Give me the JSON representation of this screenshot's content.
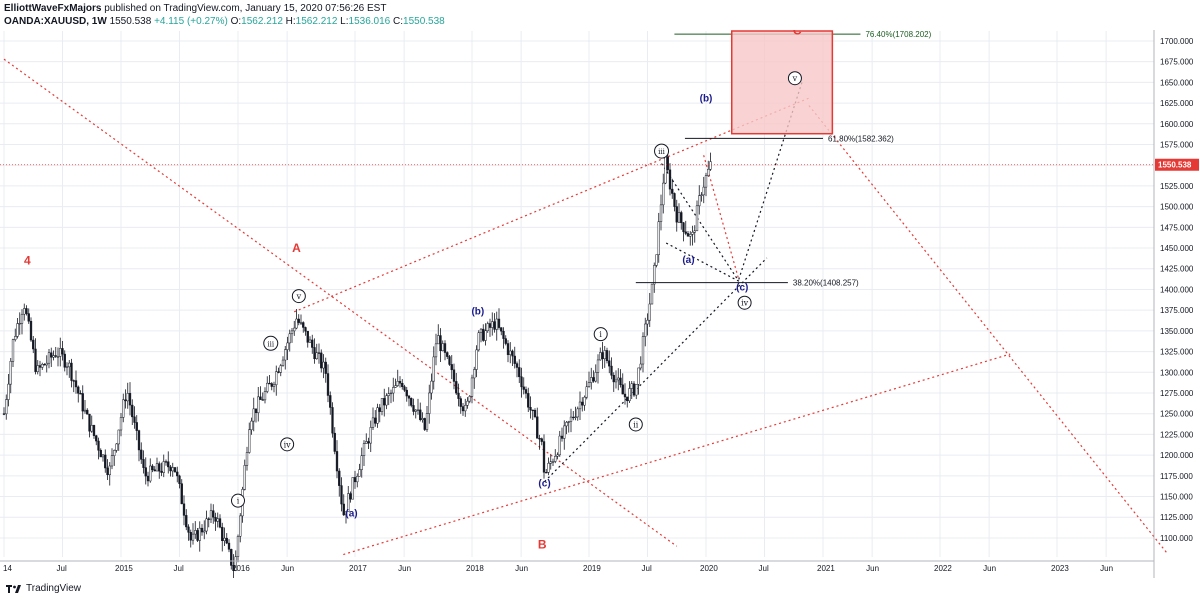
{
  "header": {
    "publisher": "ElliottWaveFxMajors",
    "published_text": "published on TradingView.com, January 15, 2020 07:56:26 EST",
    "symbol": "OANDA:XAUUSD, 1W",
    "last": "1550.538",
    "change": "+4.115 (+0.27%)",
    "o_label": "O:",
    "o_value": "1562.212",
    "h_label": "H:",
    "h_value": "1562.212",
    "l_label": "L:",
    "l_value": "1536.016",
    "c_label": "C:",
    "c_value": "1550.538"
  },
  "footer": {
    "brand": "TradingView",
    "logo_icon": "tradingview-logo-icon"
  },
  "colors": {
    "up": "#26a69a",
    "down": "#131722",
    "red": "#e53935",
    "navy": "#1a1a8c",
    "grid": "#e9ecf1",
    "zone_fill": "#f8c8c8",
    "zone_border": "#e53935",
    "green_line": "#1b5e20"
  },
  "chart_data": {
    "type": "candlestick",
    "instrument": "OANDA:XAUUSD",
    "timeframe": "1W",
    "y_axis": {
      "ticks": [
        "1700.000",
        "1675.000",
        "1650.000",
        "1625.000",
        "1600.000",
        "1575.000",
        "1550.000",
        "1525.000",
        "1500.000",
        "1475.000",
        "1450.000",
        "1425.000",
        "1400.000",
        "1375.000",
        "1350.000",
        "1325.000",
        "1300.000",
        "1275.000",
        "1250.000",
        "1225.000",
        "1200.000",
        "1175.000",
        "1150.000",
        "1125.000",
        "1100.000"
      ],
      "range": [
        1077,
        1712
      ],
      "price_label": "1550.538"
    },
    "x_axis": {
      "ticks": [
        "14",
        "Jul",
        "2015",
        "Jul",
        "2016",
        "Jun",
        "2017",
        "Jun",
        "2018",
        "Jun",
        "2019",
        "Jul",
        "2020",
        "Jul",
        "2021",
        "Jun",
        "2022",
        "Jun",
        "2023",
        "Jun"
      ]
    },
    "price_path": [
      [
        2014.0,
        1250
      ],
      [
        2014.08,
        1340
      ],
      [
        2014.17,
        1385
      ],
      [
        2014.28,
        1300
      ],
      [
        2014.45,
        1325
      ],
      [
        2014.55,
        1310
      ],
      [
        2014.72,
        1240
      ],
      [
        2014.9,
        1180
      ],
      [
        2015.05,
        1280
      ],
      [
        2015.2,
        1175
      ],
      [
        2015.45,
        1190
      ],
      [
        2015.6,
        1095
      ],
      [
        2015.8,
        1130
      ],
      [
        2015.97,
        1060
      ],
      [
        2016.1,
        1245
      ],
      [
        2016.3,
        1290
      ],
      [
        2016.5,
        1365
      ],
      [
        2016.75,
        1300
      ],
      [
        2016.9,
        1128
      ],
      [
        2017.05,
        1195
      ],
      [
        2017.2,
        1255
      ],
      [
        2017.4,
        1290
      ],
      [
        2017.6,
        1230
      ],
      [
        2017.7,
        1345
      ],
      [
        2017.95,
        1250
      ],
      [
        2018.05,
        1340
      ],
      [
        2018.2,
        1360
      ],
      [
        2018.4,
        1300
      ],
      [
        2018.6,
        1210
      ],
      [
        2018.62,
        1175
      ],
      [
        2018.8,
        1230
      ],
      [
        2019.0,
        1285
      ],
      [
        2019.12,
        1325
      ],
      [
        2019.3,
        1270
      ],
      [
        2019.4,
        1282
      ],
      [
        2019.55,
        1410
      ],
      [
        2019.65,
        1555
      ],
      [
        2019.75,
        1490
      ],
      [
        2019.88,
        1460
      ],
      [
        2019.96,
        1520
      ],
      [
        2020.04,
        1550
      ]
    ],
    "last_price": 1550.538,
    "fib_levels": [
      {
        "label": "76.40%(1708.202)",
        "value": 1708.202
      },
      {
        "label": "61.80%(1582.362)",
        "value": 1582.362
      },
      {
        "label": "38.20%(1408.257)",
        "value": 1408.257
      }
    ],
    "target_zone": {
      "price_low": 1588,
      "price_high": 1712,
      "time_start": 2020.22,
      "time_end": 2021.08,
      "label": "C"
    },
    "wave_labels": [
      {
        "text": "4",
        "style": "red"
      },
      {
        "text": "A",
        "style": "red"
      },
      {
        "text": "B",
        "style": "red"
      },
      {
        "text": "C",
        "style": "red"
      },
      {
        "text": "(a)",
        "style": "navy"
      },
      {
        "text": "(b)",
        "style": "navy"
      },
      {
        "text": "(c)",
        "style": "navy"
      },
      {
        "text": "(a)",
        "style": "navy"
      },
      {
        "text": "(b)",
        "style": "navy"
      },
      {
        "text": "(c)",
        "style": "navy"
      },
      {
        "text": "i",
        "style": "circle"
      },
      {
        "text": "iii",
        "style": "circle"
      },
      {
        "text": "iv",
        "style": "circle"
      },
      {
        "text": "v",
        "style": "circle"
      },
      {
        "text": "i",
        "style": "circle"
      },
      {
        "text": "ii",
        "style": "circle"
      },
      {
        "text": "iii",
        "style": "circle"
      },
      {
        "text": "iv",
        "style": "circle"
      },
      {
        "text": "v",
        "style": "circle"
      }
    ]
  }
}
